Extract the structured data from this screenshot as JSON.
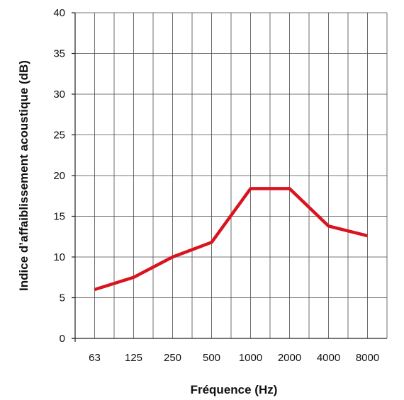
{
  "chart_data": {
    "type": "line",
    "title": "",
    "xlabel": "Fréquence (Hz)",
    "ylabel": "Indice d’affaiblissement acoustique (dB)",
    "x_scale": "log2-octave",
    "categories": [
      "63",
      "125",
      "250",
      "500",
      "1000",
      "2000",
      "4000",
      "8000"
    ],
    "ylim": [
      0,
      40
    ],
    "y_ticks": [
      "0",
      "5",
      "10",
      "15",
      "20",
      "25",
      "30",
      "35",
      "40"
    ],
    "grid": true,
    "legend": "none",
    "series": [
      {
        "color": "#d9141f",
        "values": [
          6,
          7.5,
          10,
          11.8,
          18.4,
          18.4,
          13.8,
          12.6
        ]
      }
    ]
  }
}
